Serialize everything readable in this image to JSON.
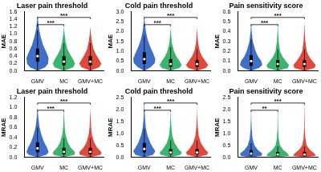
{
  "chart_data": [
    {
      "type": "violin",
      "title": "Laser pain threshold",
      "ylabel": "MAE",
      "categories": [
        "GMV",
        "MC",
        "GMV+MC"
      ],
      "colors": [
        "#3f6fc6",
        "#3cb46e",
        "#e04a3c"
      ],
      "ylim": [
        0,
        1.6
      ],
      "yticks": [
        {
          "value": 0,
          "label": "0.0"
        },
        {
          "value": 0.2,
          "label": "0.2"
        },
        {
          "value": 0.4,
          "label": "0.4"
        },
        {
          "value": 0.6,
          "label": "0.6"
        },
        {
          "value": 0.8,
          "label": "0.8"
        },
        {
          "value": 1.0,
          "label": "1.0"
        },
        {
          "value": 1.2,
          "label": "1.2"
        },
        {
          "value": 1.4,
          "label": "1.4"
        },
        {
          "value": 1.6,
          "label": "1.6"
        }
      ],
      "grid": false,
      "violins": [
        {
          "density_y": [
            0,
            0.1,
            0.2,
            0.35,
            0.5,
            0.7,
            0.9,
            1.1,
            1.3,
            1.5
          ],
          "density_width": [
            0,
            0.7,
            0.95,
            1,
            0.8,
            0.5,
            0.3,
            0.15,
            0.07,
            0
          ],
          "whisker_low": 0,
          "q1": 0.25,
          "median": 0.4,
          "q3": 0.6,
          "whisker_high": 1.1
        },
        {
          "density_y": [
            0,
            0.1,
            0.2,
            0.3,
            0.45,
            0.6,
            0.8,
            1.0,
            1.2
          ],
          "density_width": [
            0,
            0.85,
            1,
            0.85,
            0.55,
            0.3,
            0.15,
            0.06,
            0
          ],
          "whisker_low": 0,
          "q1": 0.15,
          "median": 0.25,
          "q3": 0.4,
          "whisker_high": 0.75
        },
        {
          "density_y": [
            0,
            0.1,
            0.2,
            0.3,
            0.45,
            0.6,
            0.8,
            1.0,
            1.2
          ],
          "density_width": [
            0,
            0.8,
            1,
            0.8,
            0.5,
            0.28,
            0.14,
            0.05,
            0
          ],
          "whisker_low": 0,
          "q1": 0.15,
          "median": 0.25,
          "q3": 0.4,
          "whisker_high": 0.75
        }
      ],
      "significance": [
        {
          "from": 0,
          "to": 1,
          "label": "***"
        },
        {
          "from": 0,
          "to": 2,
          "label": "***"
        }
      ]
    },
    {
      "type": "violin",
      "title": "Cold pain threshold",
      "ylabel": "MAE",
      "categories": [
        "GMV",
        "MC",
        "GMV+MC"
      ],
      "colors": [
        "#3f6fc6",
        "#3cb46e",
        "#e04a3c"
      ],
      "ylim": [
        0,
        3.0
      ],
      "yticks": [
        {
          "value": 0,
          "label": "0.0"
        },
        {
          "value": 0.5,
          "label": "0.5"
        },
        {
          "value": 1.0,
          "label": "1.0"
        },
        {
          "value": 1.5,
          "label": "1.5"
        },
        {
          "value": 2.0,
          "label": "2.0"
        },
        {
          "value": 2.5,
          "label": "2.5"
        },
        {
          "value": 3.0,
          "label": "3.0"
        }
      ],
      "grid": false,
      "violins": [
        {
          "density_y": [
            0,
            0.2,
            0.4,
            0.6,
            0.9,
            1.2,
            1.6,
            2.0,
            2.4,
            2.8
          ],
          "density_width": [
            0,
            0.6,
            0.95,
            1,
            0.8,
            0.55,
            0.3,
            0.15,
            0.06,
            0
          ],
          "whisker_low": 0,
          "q1": 0.35,
          "median": 0.6,
          "q3": 0.95,
          "whisker_high": 1.8
        },
        {
          "density_y": [
            0,
            0.15,
            0.3,
            0.5,
            0.75,
            1.0,
            1.4,
            1.8,
            2.2
          ],
          "density_width": [
            0,
            0.8,
            1,
            0.8,
            0.5,
            0.3,
            0.12,
            0.05,
            0
          ],
          "whisker_low": 0,
          "q1": 0.2,
          "median": 0.35,
          "q3": 0.6,
          "whisker_high": 1.2
        },
        {
          "density_y": [
            0,
            0.15,
            0.3,
            0.5,
            0.75,
            1.0,
            1.4,
            1.8,
            2.2
          ],
          "density_width": [
            0,
            0.8,
            1,
            0.75,
            0.45,
            0.25,
            0.1,
            0.04,
            0
          ],
          "whisker_low": 0,
          "q1": 0.2,
          "median": 0.35,
          "q3": 0.55,
          "whisker_high": 1.1
        }
      ],
      "significance": [
        {
          "from": 0,
          "to": 1,
          "label": "***"
        },
        {
          "from": 0,
          "to": 2,
          "label": "***"
        }
      ]
    },
    {
      "type": "violin",
      "title": "Pain sensitivity score",
      "ylabel": "MAE",
      "categories": [
        "GMV",
        "MC",
        "GMV+MC"
      ],
      "colors": [
        "#3f6fc6",
        "#3cb46e",
        "#e04a3c"
      ],
      "ylim": [
        0,
        0.6
      ],
      "yticks": [
        {
          "value": 0,
          "label": "0.0"
        },
        {
          "value": 0.1,
          "label": "0.1"
        },
        {
          "value": 0.2,
          "label": "0.2"
        },
        {
          "value": 0.3,
          "label": "0.3"
        },
        {
          "value": 0.4,
          "label": "0.4"
        },
        {
          "value": 0.5,
          "label": "0.5"
        },
        {
          "value": 0.6,
          "label": "0.6"
        }
      ],
      "grid": false,
      "violins": [
        {
          "density_y": [
            0,
            0.03,
            0.06,
            0.1,
            0.15,
            0.2,
            0.3,
            0.4,
            0.5
          ],
          "density_width": [
            0,
            0.7,
            1,
            0.9,
            0.6,
            0.4,
            0.15,
            0.05,
            0
          ],
          "whisker_low": 0,
          "q1": 0.05,
          "median": 0.1,
          "q3": 0.16,
          "whisker_high": 0.32
        },
        {
          "density_y": [
            0,
            0.03,
            0.06,
            0.1,
            0.15,
            0.2,
            0.3,
            0.4,
            0.5
          ],
          "density_width": [
            0,
            0.9,
            1,
            0.7,
            0.4,
            0.2,
            0.08,
            0.03,
            0
          ],
          "whisker_low": 0,
          "q1": 0.04,
          "median": 0.07,
          "q3": 0.11,
          "whisker_high": 0.22
        },
        {
          "density_y": [
            0,
            0.03,
            0.06,
            0.1,
            0.15,
            0.2,
            0.3,
            0.4,
            0.5
          ],
          "density_width": [
            0,
            0.9,
            1,
            0.7,
            0.4,
            0.2,
            0.08,
            0.03,
            0
          ],
          "whisker_low": 0,
          "q1": 0.04,
          "median": 0.07,
          "q3": 0.11,
          "whisker_high": 0.22
        }
      ],
      "significance": [
        {
          "from": 0,
          "to": 1,
          "label": "***"
        },
        {
          "from": 0,
          "to": 2,
          "label": "***"
        }
      ]
    },
    {
      "type": "violin",
      "title": "Laser pain threshold",
      "ylabel": "MRAE",
      "categories": [
        "GMV",
        "MC",
        "GMV+MC"
      ],
      "colors": [
        "#3f6fc6",
        "#3cb46e",
        "#e04a3c"
      ],
      "ylim": [
        0,
        1.2
      ],
      "yticks": [
        {
          "value": 0,
          "label": "0.0"
        },
        {
          "value": 0.2,
          "label": "0.2"
        },
        {
          "value": 0.4,
          "label": "0.4"
        },
        {
          "value": 0.6,
          "label": "0.6"
        },
        {
          "value": 0.8,
          "label": "0.8"
        },
        {
          "value": 1.0,
          "label": "1.0"
        },
        {
          "value": 1.2,
          "label": "1.2"
        }
      ],
      "grid": false,
      "violins": [
        {
          "density_y": [
            0,
            0.05,
            0.1,
            0.2,
            0.3,
            0.45,
            0.6,
            0.8,
            1.0
          ],
          "density_width": [
            0,
            0.8,
            1,
            0.85,
            0.6,
            0.35,
            0.18,
            0.07,
            0
          ],
          "whisker_low": 0,
          "q1": 0.1,
          "median": 0.18,
          "q3": 0.3,
          "whisker_high": 0.6
        },
        {
          "density_y": [
            0,
            0.05,
            0.1,
            0.2,
            0.3,
            0.45,
            0.6,
            0.8,
            1.0
          ],
          "density_width": [
            0,
            0.95,
            1,
            0.6,
            0.35,
            0.15,
            0.07,
            0.03,
            0
          ],
          "whisker_low": 0,
          "q1": 0.06,
          "median": 0.11,
          "q3": 0.19,
          "whisker_high": 0.38
        },
        {
          "density_y": [
            0,
            0.05,
            0.1,
            0.2,
            0.3,
            0.45,
            0.6,
            0.8,
            1.0
          ],
          "density_width": [
            0,
            0.95,
            1,
            0.6,
            0.35,
            0.15,
            0.07,
            0.03,
            0
          ],
          "whisker_low": 0,
          "q1": 0.06,
          "median": 0.11,
          "q3": 0.19,
          "whisker_high": 0.38
        }
      ],
      "significance": [
        {
          "from": 0,
          "to": 1,
          "label": "***"
        },
        {
          "from": 0,
          "to": 2,
          "label": "***"
        }
      ]
    },
    {
      "type": "violin",
      "title": "Cold pain threshold",
      "ylabel": "MRAE",
      "categories": [
        "GMV",
        "MC",
        "GMV+MC"
      ],
      "colors": [
        "#3f6fc6",
        "#3cb46e",
        "#e04a3c"
      ],
      "ylim": [
        0,
        2.5
      ],
      "yticks": [
        {
          "value": 0,
          "label": "0.0"
        },
        {
          "value": 0.5,
          "label": "0.5"
        },
        {
          "value": 1.0,
          "label": "1.0"
        },
        {
          "value": 1.5,
          "label": "1.5"
        },
        {
          "value": 2.0,
          "label": "2.0"
        },
        {
          "value": 2.5,
          "label": "2.5"
        }
      ],
      "grid": false,
      "violins": [
        {
          "density_y": [
            0,
            0.1,
            0.25,
            0.4,
            0.6,
            0.9,
            1.2,
            1.6,
            2.0,
            2.4
          ],
          "density_width": [
            0,
            0.8,
            1,
            0.8,
            0.55,
            0.3,
            0.15,
            0.07,
            0.03,
            0
          ],
          "whisker_low": 0,
          "q1": 0.2,
          "median": 0.35,
          "q3": 0.6,
          "whisker_high": 1.2
        },
        {
          "density_y": [
            0,
            0.1,
            0.2,
            0.35,
            0.6,
            0.9,
            1.3,
            1.7,
            2.1
          ],
          "density_width": [
            0,
            0.9,
            1,
            0.7,
            0.35,
            0.15,
            0.06,
            0.02,
            0
          ],
          "whisker_low": 0,
          "q1": 0.12,
          "median": 0.2,
          "q3": 0.35,
          "whisker_high": 0.7
        },
        {
          "density_y": [
            0,
            0.1,
            0.2,
            0.35,
            0.6,
            0.9,
            1.3,
            1.7,
            2.1
          ],
          "density_width": [
            0,
            0.9,
            1,
            0.7,
            0.35,
            0.15,
            0.06,
            0.02,
            0
          ],
          "whisker_low": 0,
          "q1": 0.12,
          "median": 0.2,
          "q3": 0.35,
          "whisker_high": 0.7
        }
      ],
      "significance": [
        {
          "from": 0,
          "to": 1,
          "label": "***"
        },
        {
          "from": 0,
          "to": 2,
          "label": "***"
        }
      ]
    },
    {
      "type": "violin",
      "title": "Pain sensitivity score",
      "ylabel": "MRAE",
      "categories": [
        "GMV",
        "MC",
        "GMV+MC"
      ],
      "colors": [
        "#3f6fc6",
        "#3cb46e",
        "#e04a3c"
      ],
      "ylim": [
        0,
        2.5
      ],
      "yticks": [
        {
          "value": 0,
          "label": "0.0"
        },
        {
          "value": 0.5,
          "label": "0.5"
        },
        {
          "value": 1.0,
          "label": "1.0"
        },
        {
          "value": 1.5,
          "label": "1.5"
        },
        {
          "value": 2.0,
          "label": "2.0"
        },
        {
          "value": 2.5,
          "label": "2.5"
        }
      ],
      "grid": false,
      "violins": [
        {
          "density_y": [
            0,
            0.05,
            0.15,
            0.3,
            0.5,
            0.8,
            1.2,
            1.6,
            2.0,
            2.3
          ],
          "density_width": [
            0,
            0.9,
            1,
            0.6,
            0.3,
            0.12,
            0.05,
            0.02,
            0.01,
            0
          ],
          "whisker_low": 0,
          "q1": 0.08,
          "median": 0.15,
          "q3": 0.3,
          "whisker_high": 0.6
        },
        {
          "density_y": [
            0,
            0.05,
            0.15,
            0.3,
            0.5,
            0.8,
            1.2,
            1.6,
            2.0,
            2.3
          ],
          "density_width": [
            0,
            1,
            0.9,
            0.5,
            0.2,
            0.08,
            0.03,
            0.02,
            0.01,
            0
          ],
          "whisker_low": 0,
          "q1": 0.06,
          "median": 0.12,
          "q3": 0.22,
          "whisker_high": 0.45
        },
        {
          "density_y": [
            0,
            0.05,
            0.15,
            0.3,
            0.5,
            0.8,
            1.2,
            1.6,
            2.0,
            2.3
          ],
          "density_width": [
            0,
            1,
            0.9,
            0.5,
            0.2,
            0.08,
            0.03,
            0.02,
            0.01,
            0
          ],
          "whisker_low": 0,
          "q1": 0.06,
          "median": 0.12,
          "q3": 0.22,
          "whisker_high": 0.45
        }
      ],
      "significance": [
        {
          "from": 0,
          "to": 1,
          "label": "**"
        },
        {
          "from": 0,
          "to": 2,
          "label": "***"
        }
      ]
    }
  ]
}
